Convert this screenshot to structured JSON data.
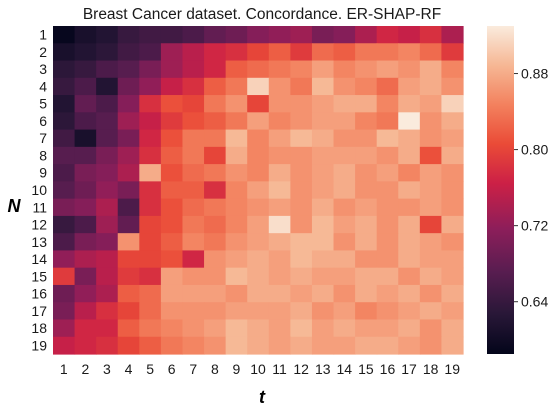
{
  "chart_data": {
    "type": "heatmap",
    "title": "Breast Cancer  dataset. Concordance. ER-SHAP-RF",
    "xlabel": "t",
    "ylabel": "N",
    "x_categories": [
      "1",
      "2",
      "3",
      "4",
      "5",
      "6",
      "7",
      "8",
      "9",
      "10",
      "11",
      "12",
      "13",
      "14",
      "15",
      "16",
      "17",
      "18",
      "19"
    ],
    "y_categories": [
      "1",
      "2",
      "3",
      "4",
      "5",
      "6",
      "7",
      "8",
      "9",
      "10",
      "11",
      "12",
      "13",
      "14",
      "15",
      "16",
      "17",
      "18",
      "19"
    ],
    "colorbar": {
      "min": 0.585,
      "max": 0.93,
      "ticks": [
        0.64,
        0.72,
        0.8,
        0.88
      ],
      "tick_labels": [
        "0.64",
        "0.72",
        "0.80",
        "0.88"
      ]
    },
    "colormap": "rocket",
    "values": [
      [
        0.59,
        0.61,
        0.62,
        0.64,
        0.65,
        0.65,
        0.66,
        0.68,
        0.69,
        0.71,
        0.72,
        0.73,
        0.7,
        0.71,
        0.74,
        0.77,
        0.76,
        0.78,
        0.74
      ],
      [
        0.61,
        0.62,
        0.63,
        0.65,
        0.66,
        0.73,
        0.75,
        0.77,
        0.78,
        0.8,
        0.82,
        0.79,
        0.83,
        0.82,
        0.84,
        0.84,
        0.85,
        0.83,
        0.79
      ],
      [
        0.63,
        0.64,
        0.66,
        0.67,
        0.7,
        0.73,
        0.75,
        0.77,
        0.82,
        0.83,
        0.84,
        0.85,
        0.87,
        0.85,
        0.86,
        0.87,
        0.86,
        0.88,
        0.85
      ],
      [
        0.64,
        0.66,
        0.62,
        0.69,
        0.72,
        0.76,
        0.78,
        0.82,
        0.84,
        0.91,
        0.86,
        0.84,
        0.89,
        0.86,
        0.85,
        0.83,
        0.87,
        0.88,
        0.86
      ],
      [
        0.62,
        0.68,
        0.66,
        0.71,
        0.78,
        0.81,
        0.8,
        0.84,
        0.86,
        0.8,
        0.86,
        0.86,
        0.87,
        0.88,
        0.88,
        0.85,
        0.88,
        0.87,
        0.91
      ],
      [
        0.63,
        0.66,
        0.67,
        0.73,
        0.76,
        0.79,
        0.81,
        0.82,
        0.84,
        0.87,
        0.85,
        0.86,
        0.87,
        0.87,
        0.85,
        0.84,
        0.93,
        0.86,
        0.88
      ],
      [
        0.65,
        0.61,
        0.67,
        0.7,
        0.77,
        0.81,
        0.84,
        0.84,
        0.89,
        0.85,
        0.87,
        0.89,
        0.88,
        0.86,
        0.86,
        0.89,
        0.88,
        0.86,
        0.87
      ],
      [
        0.67,
        0.67,
        0.7,
        0.73,
        0.78,
        0.82,
        0.84,
        0.8,
        0.88,
        0.85,
        0.86,
        0.86,
        0.87,
        0.87,
        0.87,
        0.86,
        0.88,
        0.81,
        0.88
      ],
      [
        0.66,
        0.7,
        0.71,
        0.74,
        0.88,
        0.81,
        0.83,
        0.84,
        0.86,
        0.85,
        0.88,
        0.86,
        0.87,
        0.88,
        0.86,
        0.87,
        0.85,
        0.87,
        0.86
      ],
      [
        0.67,
        0.69,
        0.72,
        0.7,
        0.78,
        0.82,
        0.82,
        0.78,
        0.85,
        0.87,
        0.89,
        0.86,
        0.87,
        0.88,
        0.86,
        0.86,
        0.88,
        0.87,
        0.86
      ],
      [
        0.7,
        0.71,
        0.74,
        0.66,
        0.78,
        0.81,
        0.83,
        0.84,
        0.85,
        0.86,
        0.87,
        0.86,
        0.88,
        0.86,
        0.87,
        0.86,
        0.86,
        0.87,
        0.86
      ],
      [
        0.64,
        0.66,
        0.73,
        0.68,
        0.8,
        0.81,
        0.84,
        0.83,
        0.85,
        0.87,
        0.92,
        0.86,
        0.89,
        0.87,
        0.88,
        0.86,
        0.88,
        0.8,
        0.88
      ],
      [
        0.66,
        0.7,
        0.71,
        0.86,
        0.8,
        0.82,
        0.85,
        0.84,
        0.86,
        0.87,
        0.88,
        0.89,
        0.89,
        0.86,
        0.88,
        0.86,
        0.88,
        0.87,
        0.86
      ],
      [
        0.72,
        0.74,
        0.75,
        0.8,
        0.8,
        0.81,
        0.77,
        0.86,
        0.87,
        0.88,
        0.87,
        0.89,
        0.88,
        0.88,
        0.86,
        0.86,
        0.88,
        0.87,
        0.87
      ],
      [
        0.79,
        0.7,
        0.75,
        0.79,
        0.78,
        0.87,
        0.86,
        0.86,
        0.89,
        0.88,
        0.87,
        0.88,
        0.87,
        0.87,
        0.88,
        0.88,
        0.86,
        0.88,
        0.87
      ],
      [
        0.69,
        0.72,
        0.74,
        0.82,
        0.83,
        0.87,
        0.87,
        0.87,
        0.86,
        0.88,
        0.88,
        0.87,
        0.88,
        0.86,
        0.88,
        0.87,
        0.88,
        0.86,
        0.88
      ],
      [
        0.7,
        0.75,
        0.78,
        0.8,
        0.83,
        0.86,
        0.86,
        0.86,
        0.87,
        0.87,
        0.87,
        0.88,
        0.86,
        0.87,
        0.85,
        0.86,
        0.87,
        0.88,
        0.87
      ],
      [
        0.73,
        0.77,
        0.77,
        0.82,
        0.84,
        0.85,
        0.86,
        0.87,
        0.89,
        0.88,
        0.87,
        0.89,
        0.87,
        0.88,
        0.87,
        0.87,
        0.88,
        0.86,
        0.88
      ],
      [
        0.76,
        0.77,
        0.78,
        0.8,
        0.82,
        0.84,
        0.85,
        0.86,
        0.89,
        0.88,
        0.87,
        0.88,
        0.87,
        0.87,
        0.88,
        0.88,
        0.87,
        0.86,
        0.88
      ]
    ]
  }
}
